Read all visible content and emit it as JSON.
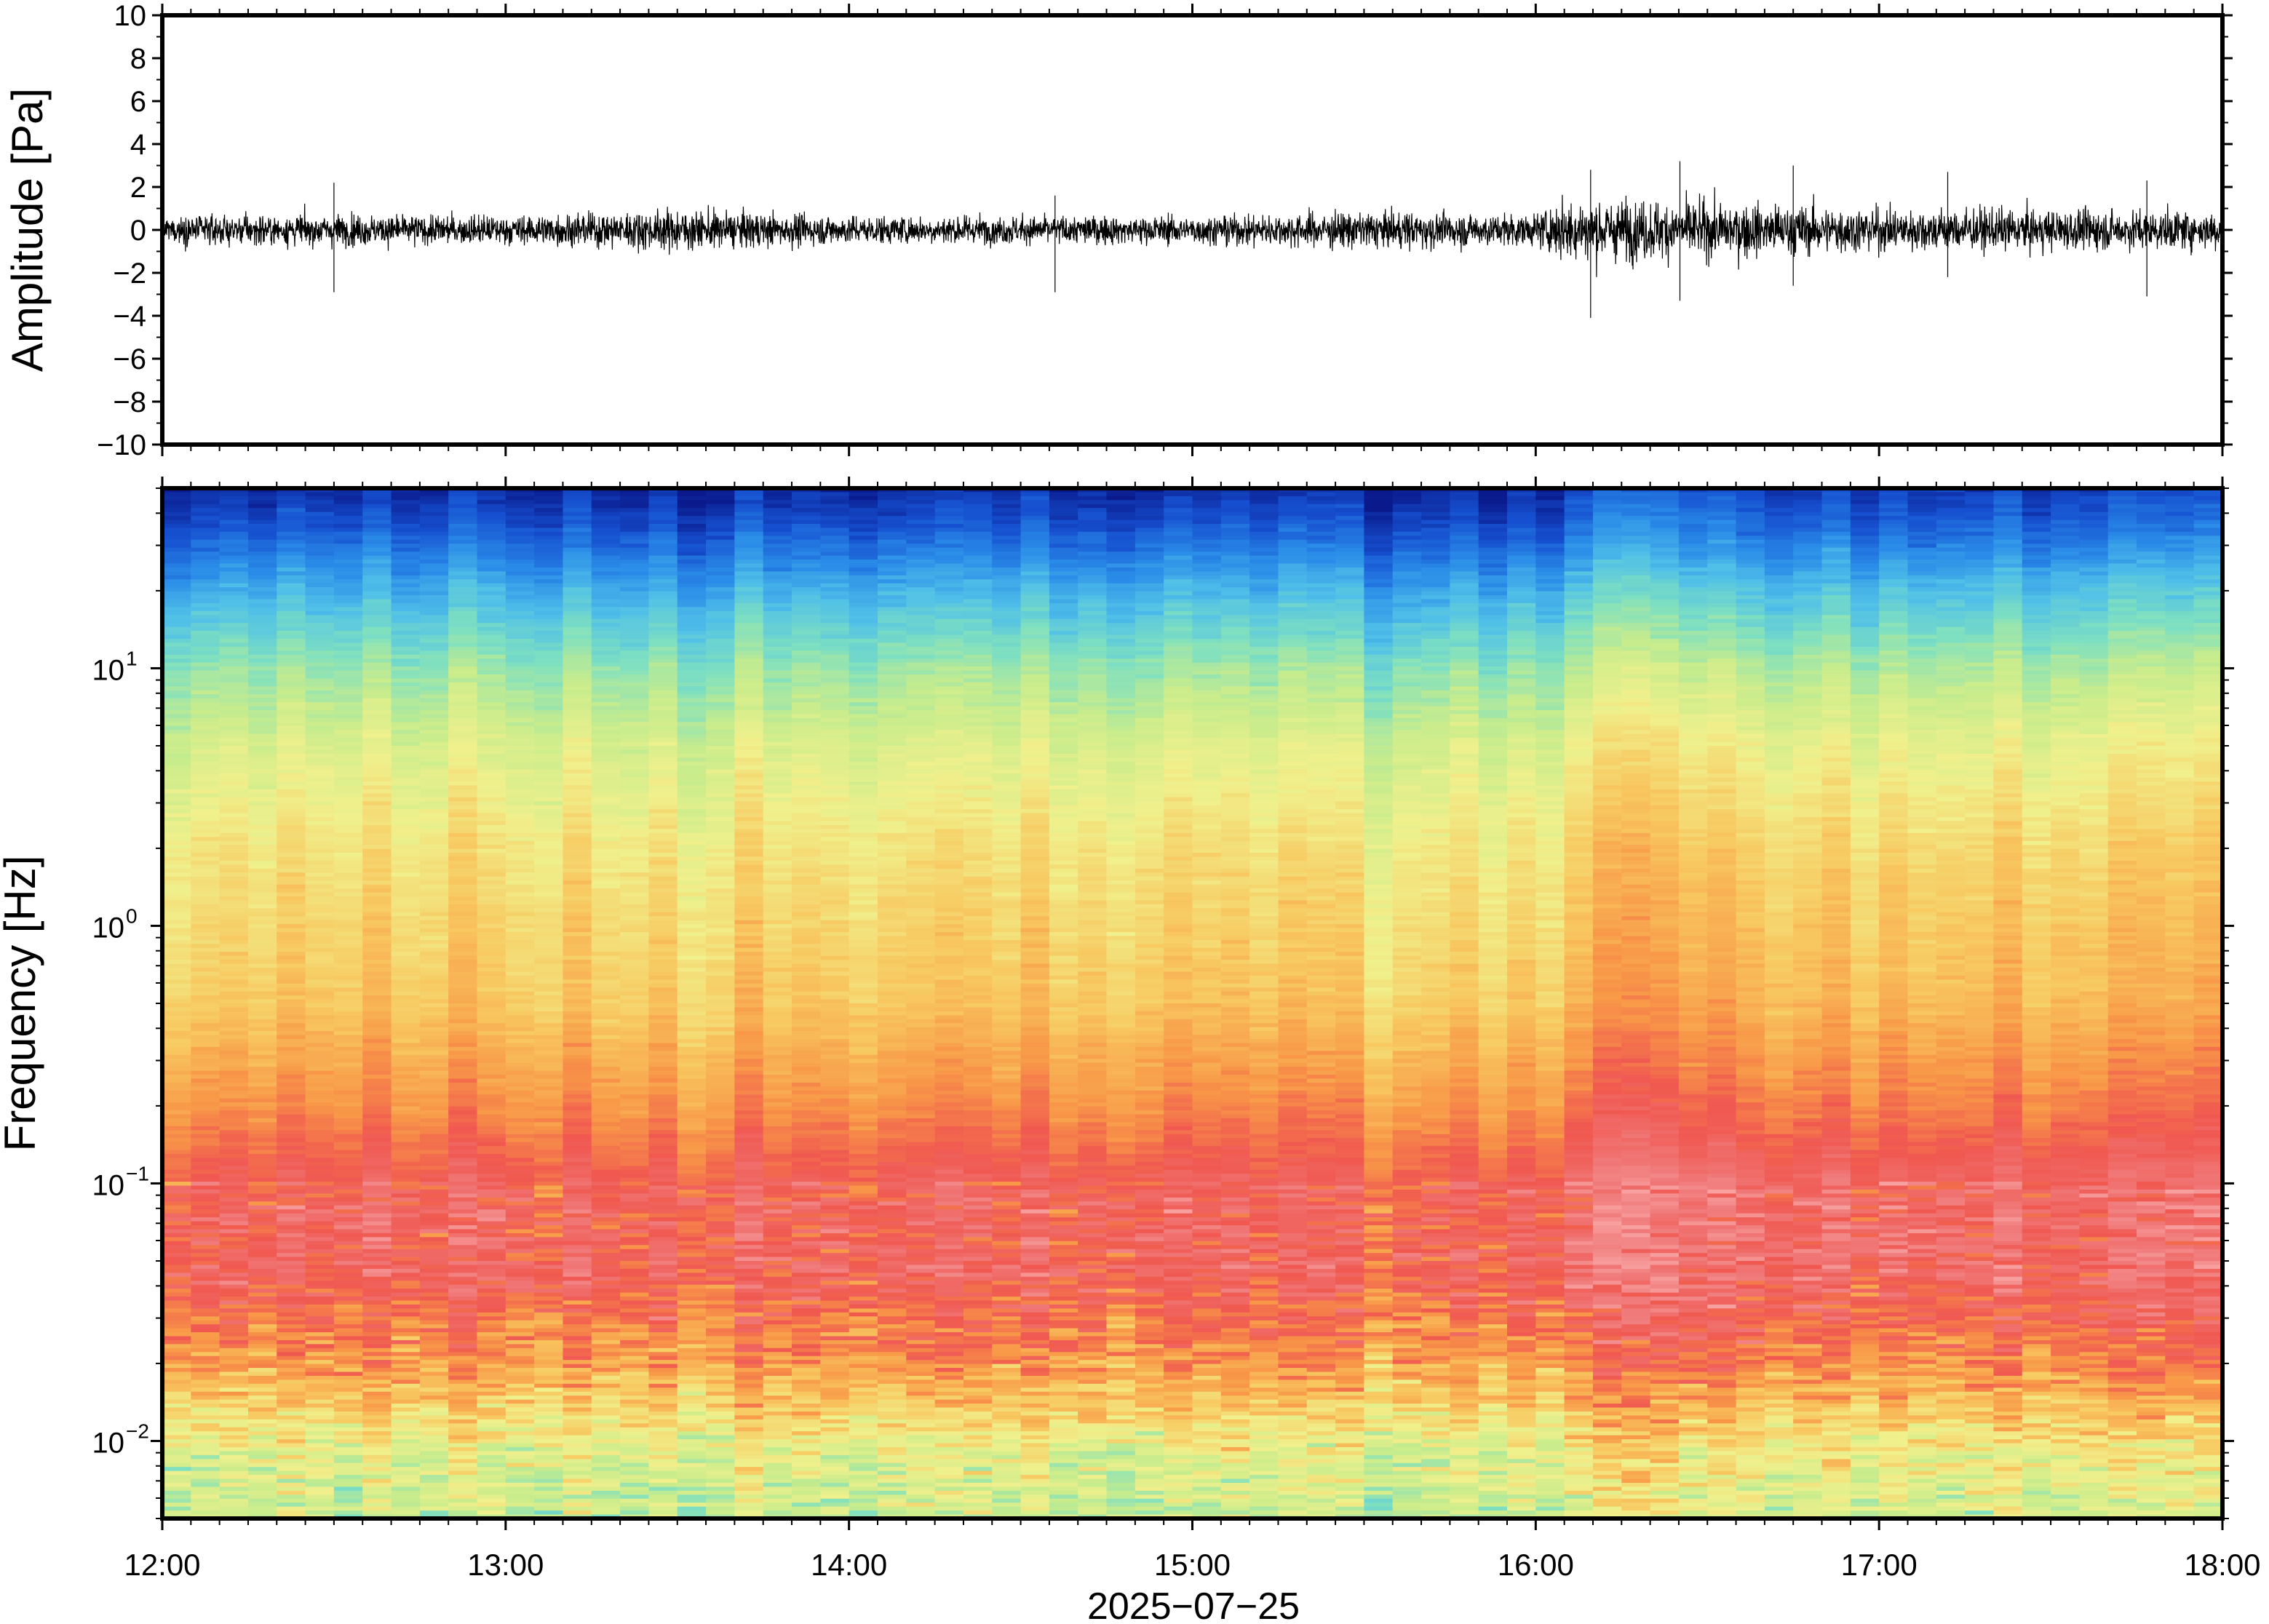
{
  "chart_data": [
    {
      "type": "line",
      "panel": "waveform",
      "ylabel": "Amplitude [Pa]",
      "ylim": [
        -10,
        10
      ],
      "yticks": [
        10,
        8,
        6,
        4,
        2,
        0,
        -2,
        -4,
        -6,
        -8,
        -10
      ],
      "ytick_labels": [
        "10",
        "8",
        "6",
        "4",
        "2",
        "0",
        "−2",
        "−4",
        "−6",
        "−8",
        "−10"
      ],
      "xlim": [
        "12:00",
        "18:00"
      ],
      "grid": false,
      "series": [
        {
          "values_hint": "noise envelope (Pa) at hourly fractions",
          "envelope_t_hours": [
            0,
            0.5,
            1.0,
            1.5,
            2.0,
            2.5,
            3.0,
            3.5,
            4.0,
            4.1,
            4.5,
            5.0,
            5.5,
            6.0
          ],
          "envelope_pa": [
            0.9,
            1.0,
            0.9,
            1.3,
            0.9,
            0.9,
            0.9,
            1.2,
            1.0,
            2.0,
            1.8,
            1.4,
            1.3,
            1.2
          ],
          "spikes": [
            {
              "t_hours": 0.5,
              "min": -2.9,
              "max": 2.2
            },
            {
              "t_hours": 2.6,
              "min": -2.9,
              "max": 1.6
            },
            {
              "t_hours": 4.16,
              "min": -4.1,
              "max": 2.8
            },
            {
              "t_hours": 4.42,
              "min": -3.3,
              "max": 3.2
            },
            {
              "t_hours": 4.75,
              "min": -2.6,
              "max": 3.0
            },
            {
              "t_hours": 5.2,
              "min": -2.2,
              "max": 2.7
            },
            {
              "t_hours": 5.78,
              "min": -3.1,
              "max": 2.3
            }
          ]
        }
      ]
    },
    {
      "type": "heatmap",
      "panel": "spectrogram",
      "ylabel": "Frequency [Hz]",
      "yscale": "log",
      "ylim": [
        0.005,
        50
      ],
      "ytick_labels": [
        {
          "base": "10",
          "exp": "1"
        },
        {
          "base": "10",
          "exp": "0"
        },
        {
          "base": "10",
          "exp": "−1"
        },
        {
          "base": "10",
          "exp": "−2"
        }
      ],
      "yticks": [
        10,
        1,
        0.1,
        0.01
      ],
      "xlabel": "2025−07−25",
      "xlim": [
        "12:00",
        "18:00"
      ],
      "xtick_labels": [
        "12:00",
        "13:00",
        "14:00",
        "15:00",
        "16:00",
        "17:00",
        "18:00"
      ],
      "colormap": [
        "#0a1a8c",
        "#1650d0",
        "#2a8ce8",
        "#50c0e8",
        "#7fe0c0",
        "#c8ec8c",
        "#f0f08c",
        "#f8c860",
        "#f89848",
        "#f05850",
        "#f07878",
        "#f8a0a0"
      ],
      "energetic_window_hours": [
        4.1,
        4.6
      ],
      "grid": false
    }
  ]
}
